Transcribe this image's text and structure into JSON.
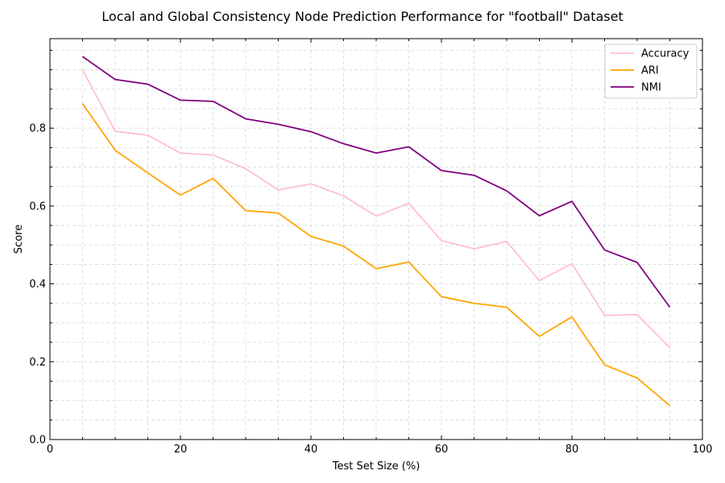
{
  "chart_data": {
    "type": "line",
    "title": "Local and Global Consistency Node Prediction Performance for \"football\" Dataset",
    "xlabel": "Test Set Size (%)",
    "ylabel": "Score",
    "xlim": [
      0,
      100
    ],
    "ylim": [
      0,
      1.03
    ],
    "x_ticks": [
      0,
      20,
      40,
      60,
      80,
      100
    ],
    "y_ticks": [
      0.0,
      0.2,
      0.4,
      0.6,
      0.8
    ],
    "x_tick_labels": [
      "0",
      "20",
      "40",
      "60",
      "80",
      "100"
    ],
    "y_tick_labels": [
      "0.0",
      "0.2",
      "0.4",
      "0.6",
      "0.8"
    ],
    "grid": true,
    "legend_position": "top-right",
    "x": [
      5,
      10,
      15,
      20,
      25,
      30,
      35,
      40,
      45,
      50,
      55,
      60,
      65,
      70,
      75,
      80,
      85,
      90,
      95
    ],
    "series": [
      {
        "name": "Accuracy",
        "color": "#ffc0cb",
        "values": [
          0.95,
          0.792,
          0.782,
          0.736,
          0.731,
          0.696,
          0.641,
          0.657,
          0.626,
          0.574,
          0.607,
          0.511,
          0.49,
          0.509,
          0.408,
          0.452,
          0.319,
          0.321,
          0.236
        ]
      },
      {
        "name": "ARI",
        "color": "#ffa500",
        "values": [
          0.863,
          0.743,
          0.685,
          0.628,
          0.671,
          0.588,
          0.582,
          0.522,
          0.497,
          0.439,
          0.456,
          0.367,
          0.35,
          0.34,
          0.265,
          0.315,
          0.192,
          0.158,
          0.087
        ]
      },
      {
        "name": "NMI",
        "color": "#800080",
        "values": [
          0.984,
          0.925,
          0.913,
          0.872,
          0.869,
          0.824,
          0.81,
          0.791,
          0.76,
          0.736,
          0.752,
          0.691,
          0.679,
          0.639,
          0.575,
          0.612,
          0.487,
          0.455,
          0.34
        ]
      }
    ]
  }
}
